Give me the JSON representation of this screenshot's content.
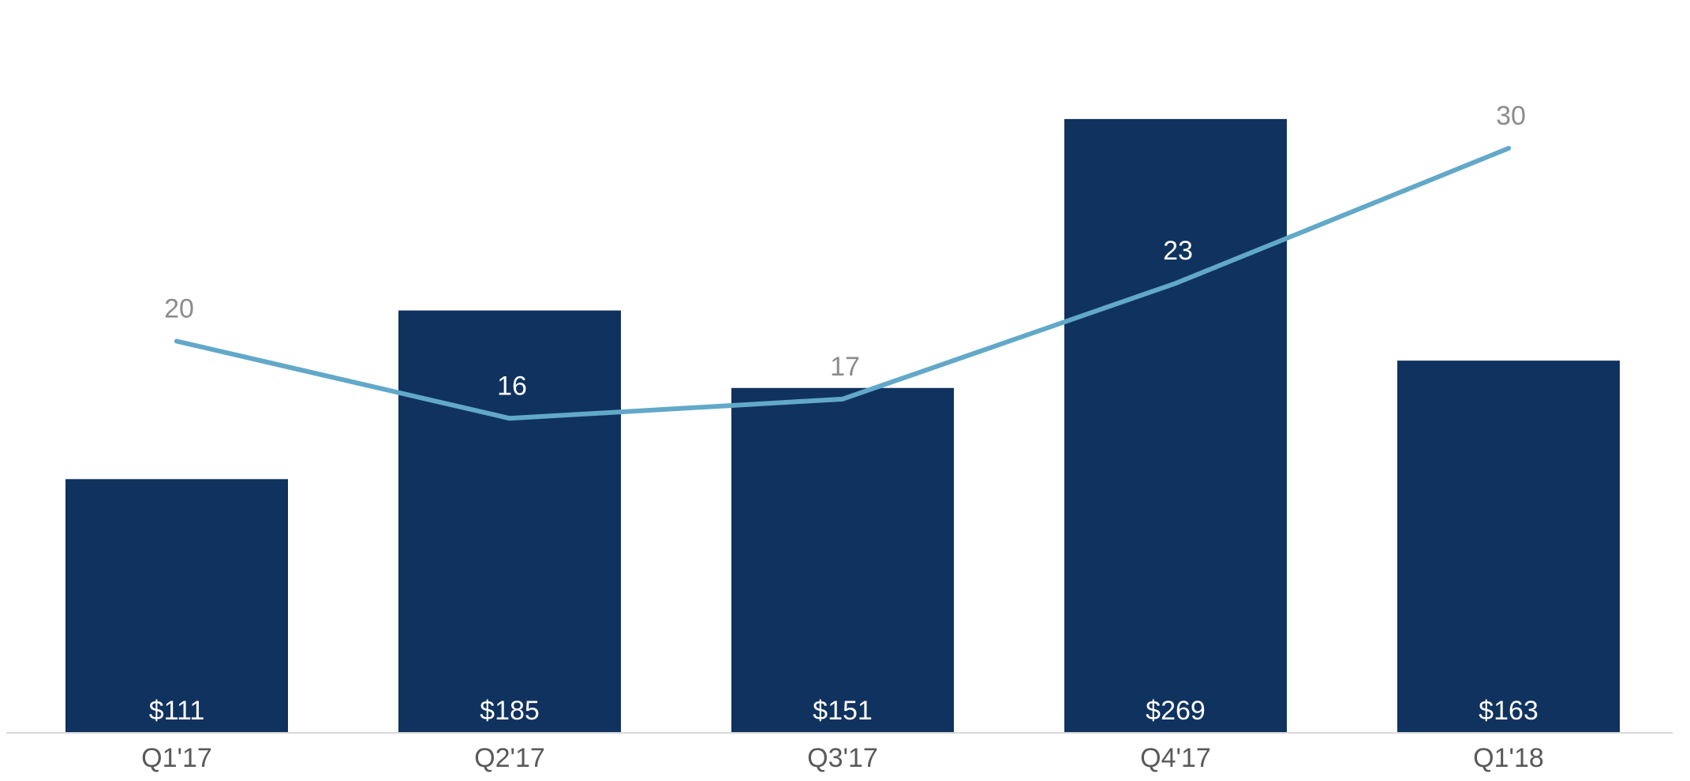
{
  "chart_data": {
    "type": "bar",
    "categories": [
      "Q1'17",
      "Q2'17",
      "Q3'17",
      "Q4'17",
      "Q1'18"
    ],
    "series": [
      {
        "type": "bar",
        "values": [
          111,
          185,
          151,
          269,
          163
        ],
        "labels": [
          "$111",
          "$185",
          "$151",
          "$269",
          "$163"
        ],
        "color": "#10325f"
      },
      {
        "type": "line",
        "values": [
          20,
          16,
          17,
          23,
          30
        ],
        "labels": [
          "20",
          "16",
          "17",
          "23",
          "30"
        ],
        "color": "#62a8c9"
      }
    ],
    "bar_ylim": [
      0,
      270
    ],
    "line_ylim": [
      0,
      32
    ],
    "grid": false,
    "legend": "none",
    "colors": {
      "axis": "#d9d9d9",
      "tick_text": "#595959",
      "label_on_bar": "#ffffff",
      "label_off_bar": "#8c8c8c"
    }
  }
}
